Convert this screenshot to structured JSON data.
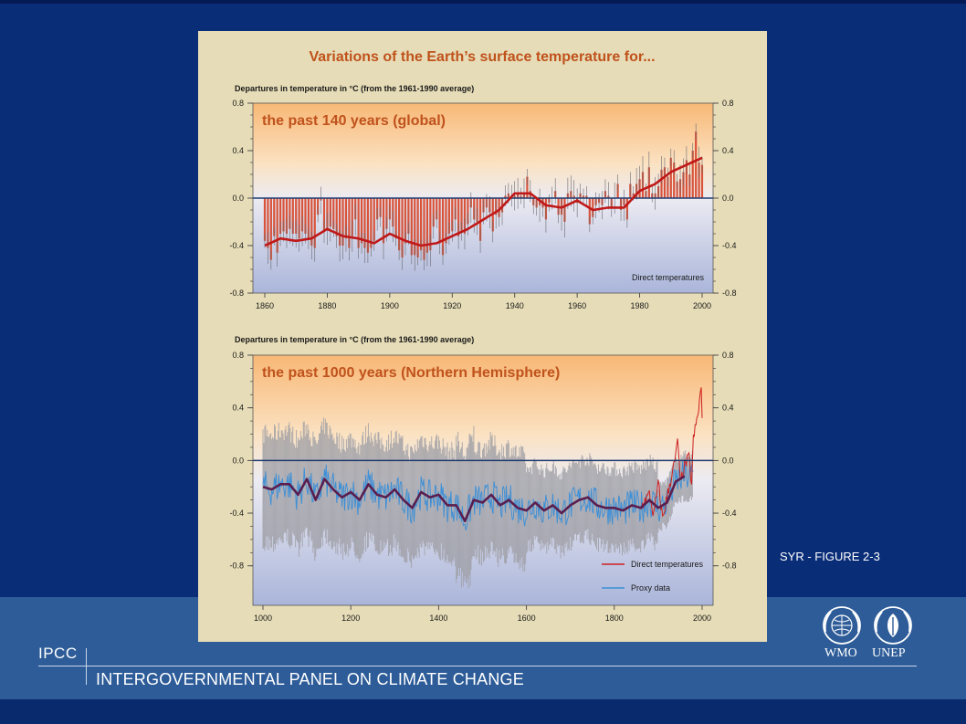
{
  "slide": {
    "footer_abbrev": "IPCC",
    "footer_org": "INTERGOVERNMENTAL PANEL ON CLIMATE CHANGE",
    "figure_label": "SYR - FIGURE 2-3",
    "logos": [
      {
        "icon": "wmo-emblem-icon",
        "text": "WMO"
      },
      {
        "icon": "unep-emblem-icon",
        "text": "UNEP"
      }
    ],
    "colors": {
      "background": "#0a2d78",
      "footer_band": "#2e5c98",
      "panel": "#e6dcb7",
      "title_text": "#c0521c",
      "direct_series": "#cc2020",
      "proxy_series": "#3a8fd8",
      "smoothed_proxy": "#5a1e4e"
    }
  },
  "figure_title": "Variations of the Earth’s surface temperature for...",
  "chart_data": [
    {
      "type": "bar",
      "panel_title": "the past 140 years (global)",
      "ylabel": "Departures in temperature in °C (from the 1961-1990 average)",
      "ylim": [
        -0.8,
        0.8
      ],
      "yticks": [
        "0.8",
        "0.4",
        "0.0",
        "-0.4",
        "-0.8"
      ],
      "xlim": [
        1860,
        2000
      ],
      "xticks": [
        "1860",
        "1880",
        "1900",
        "1920",
        "1940",
        "1960",
        "1980",
        "2000"
      ],
      "legend": [
        "Direct temperatures"
      ],
      "annual": [
        [
          1860,
          -0.36
        ],
        [
          1861,
          -0.42
        ],
        [
          1862,
          -0.52
        ],
        [
          1863,
          -0.32
        ],
        [
          1864,
          -0.46
        ],
        [
          1865,
          -0.3
        ],
        [
          1866,
          -0.28
        ],
        [
          1867,
          -0.3
        ],
        [
          1868,
          -0.26
        ],
        [
          1869,
          -0.3
        ],
        [
          1870,
          -0.3
        ],
        [
          1871,
          -0.34
        ],
        [
          1872,
          -0.28
        ],
        [
          1873,
          -0.3
        ],
        [
          1874,
          -0.34
        ],
        [
          1875,
          -0.4
        ],
        [
          1876,
          -0.42
        ],
        [
          1877,
          -0.14
        ],
        [
          1878,
          -0.02
        ],
        [
          1879,
          -0.28
        ],
        [
          1880,
          -0.26
        ],
        [
          1881,
          -0.24
        ],
        [
          1882,
          -0.26
        ],
        [
          1883,
          -0.32
        ],
        [
          1884,
          -0.4
        ],
        [
          1885,
          -0.4
        ],
        [
          1886,
          -0.34
        ],
        [
          1887,
          -0.42
        ],
        [
          1888,
          -0.32
        ],
        [
          1889,
          -0.18
        ],
        [
          1890,
          -0.42
        ],
        [
          1891,
          -0.38
        ],
        [
          1892,
          -0.42
        ],
        [
          1893,
          -0.46
        ],
        [
          1894,
          -0.42
        ],
        [
          1895,
          -0.36
        ],
        [
          1896,
          -0.18
        ],
        [
          1897,
          -0.16
        ],
        [
          1898,
          -0.38
        ],
        [
          1899,
          -0.26
        ],
        [
          1900,
          -0.18
        ],
        [
          1901,
          -0.24
        ],
        [
          1902,
          -0.34
        ],
        [
          1903,
          -0.44
        ],
        [
          1904,
          -0.5
        ],
        [
          1905,
          -0.38
        ],
        [
          1906,
          -0.3
        ],
        [
          1907,
          -0.48
        ],
        [
          1908,
          -0.48
        ],
        [
          1909,
          -0.5
        ],
        [
          1910,
          -0.44
        ],
        [
          1911,
          -0.52
        ],
        [
          1912,
          -0.46
        ],
        [
          1913,
          -0.44
        ],
        [
          1914,
          -0.24
        ],
        [
          1915,
          -0.18
        ],
        [
          1916,
          -0.38
        ],
        [
          1917,
          -0.48
        ],
        [
          1918,
          -0.38
        ],
        [
          1919,
          -0.3
        ],
        [
          1920,
          -0.28
        ],
        [
          1921,
          -0.18
        ],
        [
          1922,
          -0.32
        ],
        [
          1923,
          -0.28
        ],
        [
          1924,
          -0.3
        ],
        [
          1925,
          -0.22
        ],
        [
          1926,
          -0.08
        ],
        [
          1927,
          -0.18
        ],
        [
          1928,
          -0.2
        ],
        [
          1929,
          -0.36
        ],
        [
          1930,
          -0.12
        ],
        [
          1931,
          -0.08
        ],
        [
          1932,
          -0.12
        ],
        [
          1933,
          -0.28
        ],
        [
          1934,
          -0.14
        ],
        [
          1935,
          -0.16
        ],
        [
          1936,
          -0.12
        ],
        [
          1937,
          0.02
        ],
        [
          1938,
          0.04
        ],
        [
          1939,
          0.02
        ],
        [
          1940,
          0.02
        ],
        [
          1941,
          0.04
        ],
        [
          1942,
          0.02
        ],
        [
          1943,
          0.04
        ],
        [
          1944,
          0.18
        ],
        [
          1945,
          0.06
        ],
        [
          1946,
          -0.06
        ],
        [
          1947,
          -0.08
        ],
        [
          1948,
          -0.06
        ],
        [
          1949,
          -0.08
        ],
        [
          1950,
          -0.18
        ],
        [
          1951,
          -0.04
        ],
        [
          1952,
          0.0
        ],
        [
          1953,
          0.06
        ],
        [
          1954,
          -0.14
        ],
        [
          1955,
          -0.14
        ],
        [
          1956,
          -0.2
        ],
        [
          1957,
          0.04
        ],
        [
          1958,
          0.06
        ],
        [
          1959,
          0.02
        ],
        [
          1960,
          -0.04
        ],
        [
          1961,
          0.04
        ],
        [
          1962,
          0.02
        ],
        [
          1963,
          0.02
        ],
        [
          1964,
          -0.22
        ],
        [
          1965,
          -0.16
        ],
        [
          1966,
          -0.06
        ],
        [
          1967,
          -0.04
        ],
        [
          1968,
          -0.06
        ],
        [
          1969,
          0.06
        ],
        [
          1970,
          0.02
        ],
        [
          1971,
          -0.08
        ],
        [
          1972,
          0.0
        ],
        [
          1973,
          0.12
        ],
        [
          1974,
          -0.1
        ],
        [
          1975,
          -0.06
        ],
        [
          1976,
          -0.18
        ],
        [
          1977,
          0.12
        ],
        [
          1978,
          0.04
        ],
        [
          1979,
          0.12
        ],
        [
          1980,
          0.16
        ],
        [
          1981,
          0.22
        ],
        [
          1982,
          0.06
        ],
        [
          1983,
          0.26
        ],
        [
          1984,
          0.04
        ],
        [
          1985,
          0.04
        ],
        [
          1986,
          0.1
        ],
        [
          1987,
          0.24
        ],
        [
          1988,
          0.26
        ],
        [
          1989,
          0.18
        ],
        [
          1990,
          0.34
        ],
        [
          1991,
          0.3
        ],
        [
          1992,
          0.14
        ],
        [
          1993,
          0.16
        ],
        [
          1994,
          0.22
        ],
        [
          1995,
          0.32
        ],
        [
          1996,
          0.2
        ],
        [
          1997,
          0.4
        ],
        [
          1998,
          0.56
        ],
        [
          1999,
          0.3
        ],
        [
          2000,
          0.28
        ]
      ],
      "smoothed": [
        [
          1860,
          -0.4
        ],
        [
          1865,
          -0.34
        ],
        [
          1870,
          -0.36
        ],
        [
          1875,
          -0.34
        ],
        [
          1880,
          -0.26
        ],
        [
          1885,
          -0.32
        ],
        [
          1890,
          -0.34
        ],
        [
          1895,
          -0.38
        ],
        [
          1900,
          -0.3
        ],
        [
          1905,
          -0.36
        ],
        [
          1910,
          -0.4
        ],
        [
          1915,
          -0.38
        ],
        [
          1920,
          -0.32
        ],
        [
          1925,
          -0.26
        ],
        [
          1930,
          -0.18
        ],
        [
          1935,
          -0.1
        ],
        [
          1940,
          0.04
        ],
        [
          1945,
          0.04
        ],
        [
          1950,
          -0.06
        ],
        [
          1955,
          -0.08
        ],
        [
          1960,
          -0.02
        ],
        [
          1965,
          -0.1
        ],
        [
          1970,
          -0.08
        ],
        [
          1975,
          -0.08
        ],
        [
          1980,
          0.06
        ],
        [
          1985,
          0.12
        ],
        [
          1990,
          0.22
        ],
        [
          1995,
          0.28
        ],
        [
          2000,
          0.34
        ]
      ]
    },
    {
      "type": "line",
      "panel_title": "the past 1000 years (Northern Hemisphere)",
      "ylabel": "Departures in temperature in °C (from the 1961-1990 average)",
      "ylim": [
        -1.1,
        0.8
      ],
      "yticks": [
        "0.8",
        "0.4",
        "0.0",
        "-0.4",
        "-0.8"
      ],
      "xlim": [
        1000,
        2000
      ],
      "xticks": [
        "1000",
        "1200",
        "1400",
        "1600",
        "1800",
        "2000"
      ],
      "legend": [
        "Direct temperatures",
        "Proxy data"
      ],
      "proxy_smoothed": [
        [
          1000,
          -0.2
        ],
        [
          1020,
          -0.22
        ],
        [
          1040,
          -0.18
        ],
        [
          1060,
          -0.18
        ],
        [
          1080,
          -0.26
        ],
        [
          1100,
          -0.14
        ],
        [
          1120,
          -0.3
        ],
        [
          1140,
          -0.14
        ],
        [
          1160,
          -0.22
        ],
        [
          1180,
          -0.28
        ],
        [
          1200,
          -0.24
        ],
        [
          1220,
          -0.3
        ],
        [
          1240,
          -0.18
        ],
        [
          1260,
          -0.26
        ],
        [
          1280,
          -0.28
        ],
        [
          1300,
          -0.22
        ],
        [
          1320,
          -0.3
        ],
        [
          1340,
          -0.36
        ],
        [
          1360,
          -0.24
        ],
        [
          1380,
          -0.28
        ],
        [
          1400,
          -0.26
        ],
        [
          1420,
          -0.34
        ],
        [
          1440,
          -0.34
        ],
        [
          1460,
          -0.46
        ],
        [
          1480,
          -0.3
        ],
        [
          1500,
          -0.32
        ],
        [
          1520,
          -0.26
        ],
        [
          1540,
          -0.34
        ],
        [
          1560,
          -0.3
        ],
        [
          1580,
          -0.36
        ],
        [
          1600,
          -0.38
        ],
        [
          1620,
          -0.32
        ],
        [
          1640,
          -0.38
        ],
        [
          1660,
          -0.34
        ],
        [
          1680,
          -0.4
        ],
        [
          1700,
          -0.34
        ],
        [
          1720,
          -0.3
        ],
        [
          1740,
          -0.28
        ],
        [
          1760,
          -0.34
        ],
        [
          1780,
          -0.36
        ],
        [
          1800,
          -0.36
        ],
        [
          1820,
          -0.38
        ],
        [
          1840,
          -0.34
        ],
        [
          1860,
          -0.36
        ],
        [
          1880,
          -0.3
        ],
        [
          1900,
          -0.36
        ],
        [
          1920,
          -0.32
        ],
        [
          1940,
          -0.16
        ],
        [
          1960,
          -0.12
        ]
      ],
      "direct_annual": [
        [
          1860,
          -0.36
        ],
        [
          1870,
          -0.3
        ],
        [
          1880,
          -0.26
        ],
        [
          1890,
          -0.42
        ],
        [
          1900,
          -0.18
        ],
        [
          1910,
          -0.44
        ],
        [
          1920,
          -0.28
        ],
        [
          1930,
          -0.12
        ],
        [
          1940,
          0.02
        ],
        [
          1944,
          0.18
        ],
        [
          1950,
          -0.18
        ],
        [
          1960,
          -0.04
        ],
        [
          1970,
          0.02
        ],
        [
          1976,
          -0.18
        ],
        [
          1980,
          0.16
        ],
        [
          1990,
          0.34
        ],
        [
          1998,
          0.56
        ],
        [
          2000,
          0.28
        ]
      ],
      "uncertainty_range": [
        -1.0,
        0.4
      ]
    }
  ]
}
